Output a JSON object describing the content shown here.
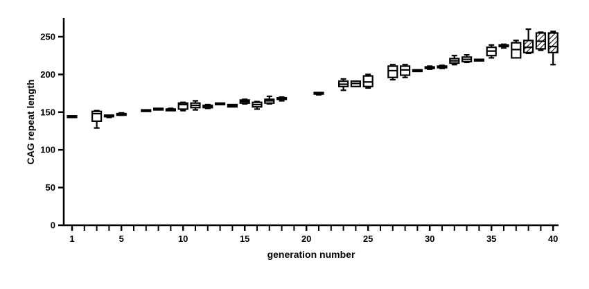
{
  "chart_data": {
    "type": "box",
    "title": "",
    "xlabel": "generation number",
    "ylabel": "CAG repeat length",
    "xlim": [
      0.5,
      40.5
    ],
    "ylim": [
      0,
      275
    ],
    "x_ticks_labeled": [
      1,
      5,
      10,
      15,
      20,
      25,
      30,
      35,
      40
    ],
    "x_ticks_minor": [
      2,
      3,
      4,
      6,
      7,
      8,
      9,
      11,
      12,
      13,
      14,
      16,
      17,
      18,
      19,
      21,
      22,
      23,
      24,
      26,
      27,
      28,
      29,
      31,
      32,
      33,
      34,
      36,
      37,
      38,
      39
    ],
    "y_ticks": [
      0,
      50,
      100,
      150,
      200,
      250
    ],
    "grid": false,
    "legend": "none",
    "colors": {
      "ink": "#000000",
      "box_fill": "#ffffff"
    },
    "boxes": [
      {
        "x": 1,
        "min": 145,
        "q1": 145,
        "median": 145,
        "q3": 145,
        "max": 145
      },
      {
        "x": 3,
        "min": 129,
        "q1": 138,
        "median": 148,
        "q3": 151,
        "max": 152
      },
      {
        "x": 4,
        "min": 143,
        "q1": 144,
        "median": 145,
        "q3": 146,
        "max": 146
      },
      {
        "x": 5,
        "min": 146,
        "q1": 147,
        "median": 148,
        "q3": 148,
        "max": 149
      },
      {
        "x": 7,
        "min": 151,
        "q1": 151,
        "median": 152,
        "q3": 153,
        "max": 153
      },
      {
        "x": 8,
        "min": 154,
        "q1": 154,
        "median": 154,
        "q3": 155,
        "max": 155
      },
      {
        "x": 9,
        "min": 153,
        "q1": 153,
        "median": 154,
        "q3": 154,
        "max": 155
      },
      {
        "x": 10,
        "min": 152,
        "q1": 154,
        "median": 160,
        "q3": 162,
        "max": 163
      },
      {
        "x": 11,
        "min": 153,
        "q1": 156,
        "median": 159,
        "q3": 162,
        "max": 165
      },
      {
        "x": 12,
        "min": 155,
        "q1": 156,
        "median": 158,
        "q3": 159,
        "max": 160
      },
      {
        "x": 13,
        "min": 160,
        "q1": 160,
        "median": 161,
        "q3": 162,
        "max": 162
      },
      {
        "x": 14,
        "min": 157,
        "q1": 157,
        "median": 158,
        "q3": 160,
        "max": 160
      },
      {
        "x": 15,
        "min": 161,
        "q1": 162,
        "median": 164,
        "q3": 166,
        "max": 167
      },
      {
        "x": 16,
        "min": 154,
        "q1": 157,
        "median": 160,
        "q3": 163,
        "max": 164
      },
      {
        "x": 17,
        "min": 161,
        "q1": 162,
        "median": 165,
        "q3": 167,
        "max": 171
      },
      {
        "x": 18,
        "min": 165,
        "q1": 167,
        "median": 168,
        "q3": 169,
        "max": 170
      },
      {
        "x": 21,
        "min": 173,
        "q1": 174,
        "median": 175,
        "q3": 176,
        "max": 176
      },
      {
        "x": 23,
        "min": 179,
        "q1": 184,
        "median": 187,
        "q3": 191,
        "max": 194
      },
      {
        "x": 24,
        "min": 184,
        "q1": 184,
        "median": 188,
        "q3": 191,
        "max": 191
      },
      {
        "x": 25,
        "min": 182,
        "q1": 184,
        "median": 190,
        "q3": 198,
        "max": 200
      },
      {
        "x": 27,
        "min": 193,
        "q1": 196,
        "median": 205,
        "q3": 211,
        "max": 213
      },
      {
        "x": 28,
        "min": 196,
        "q1": 199,
        "median": 206,
        "q3": 211,
        "max": 213
      },
      {
        "x": 29,
        "min": 206,
        "q1": 206,
        "median": 206,
        "q3": 206,
        "max": 206
      },
      {
        "x": 30,
        "min": 207,
        "q1": 208,
        "median": 209,
        "q3": 210,
        "max": 211
      },
      {
        "x": 31,
        "min": 208,
        "q1": 209,
        "median": 210,
        "q3": 211,
        "max": 212
      },
      {
        "x": 32,
        "min": 213,
        "q1": 215,
        "median": 218,
        "q3": 221,
        "max": 225
      },
      {
        "x": 33,
        "min": 216,
        "q1": 217,
        "median": 220,
        "q3": 223,
        "max": 226
      },
      {
        "x": 34,
        "min": 220,
        "q1": 220,
        "median": 220,
        "q3": 220,
        "max": 220
      },
      {
        "x": 35,
        "min": 222,
        "q1": 225,
        "median": 231,
        "q3": 236,
        "max": 239
      },
      {
        "x": 36,
        "min": 235,
        "q1": 237,
        "median": 238,
        "q3": 239,
        "max": 240
      },
      {
        "x": 37,
        "min": 222,
        "q1": 222,
        "median": 233,
        "q3": 242,
        "max": 245
      },
      {
        "x": 38,
        "min": 228,
        "q1": 229,
        "median": 236,
        "q3": 245,
        "max": 260,
        "hatched": true
      },
      {
        "x": 39,
        "min": 232,
        "q1": 234,
        "median": 244,
        "q3": 255,
        "max": 256,
        "hatched": true
      },
      {
        "x": 40,
        "min": 213,
        "q1": 229,
        "median": 237,
        "q3": 255,
        "max": 257,
        "hatched": true
      }
    ]
  }
}
